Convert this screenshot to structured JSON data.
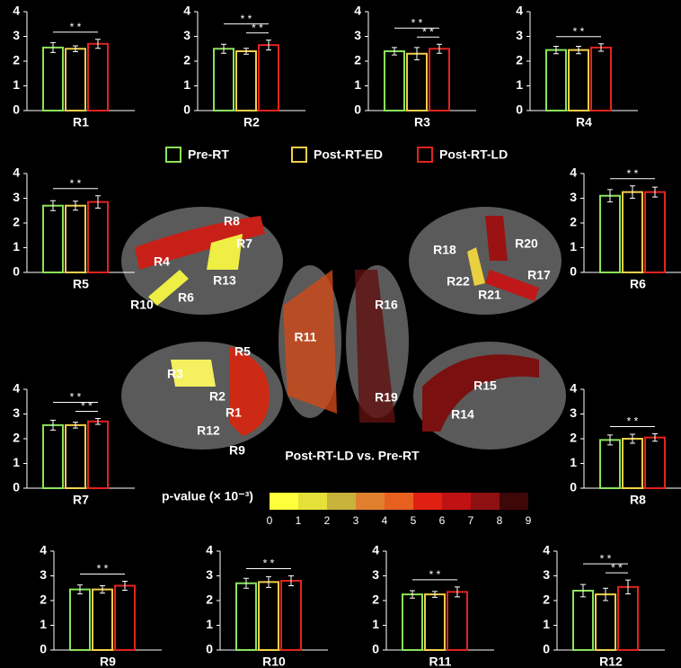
{
  "legend": [
    {
      "name": "Pre-RT",
      "color": "#8be35c"
    },
    {
      "name": "Post-RT-ED",
      "color": "#f2cf4a"
    },
    {
      "name": "Post-RT-LD",
      "color": "#e2231f"
    }
  ],
  "contrast_label": "Post-RT-LD vs. Pre-RT",
  "colorbar": {
    "title": "p-value (× 10⁻³)",
    "ticks": [
      0,
      1,
      2,
      3,
      4,
      5,
      6,
      7,
      8,
      9
    ],
    "colors": [
      "#ffff3c",
      "#e6e03a",
      "#c9b23a",
      "#e0802e",
      "#e86020",
      "#e02012",
      "#c01212",
      "#8e1010",
      "#3e0808"
    ]
  },
  "brain_labels": [
    "R8",
    "R7",
    "R4",
    "R13",
    "R10",
    "R6",
    "R18",
    "R20",
    "R17",
    "R22",
    "R21",
    "R16",
    "R11",
    "R19",
    "R5",
    "R3",
    "R2",
    "R1",
    "R12",
    "R9",
    "R15",
    "R14"
  ],
  "chart_data": [
    {
      "type": "bar",
      "title": "R1",
      "values": [
        2.55,
        2.5,
        2.7
      ],
      "errors": [
        0.2,
        0.12,
        0.18
      ],
      "ylim": [
        0,
        4
      ],
      "yticks": [
        0,
        1,
        2,
        3,
        4
      ],
      "significance": [
        {
          "from": 0,
          "to": 2,
          "label": "* *"
        }
      ]
    },
    {
      "type": "bar",
      "title": "R2",
      "values": [
        2.5,
        2.4,
        2.65
      ],
      "errors": [
        0.18,
        0.12,
        0.2
      ],
      "ylim": [
        0,
        4
      ],
      "yticks": [
        0,
        1,
        2,
        3,
        4
      ],
      "significance": [
        {
          "from": 0,
          "to": 2,
          "label": "* *"
        },
        {
          "from": 1,
          "to": 2,
          "label": "* *"
        }
      ]
    },
    {
      "type": "bar",
      "title": "R3",
      "values": [
        2.4,
        2.3,
        2.5
      ],
      "errors": [
        0.15,
        0.25,
        0.18
      ],
      "ylim": [
        0,
        4
      ],
      "yticks": [
        0,
        1,
        2,
        3,
        4
      ],
      "significance": [
        {
          "from": 0,
          "to": 2,
          "label": "* *"
        },
        {
          "from": 1,
          "to": 2,
          "label": "* *"
        }
      ]
    },
    {
      "type": "bar",
      "title": "R4",
      "values": [
        2.45,
        2.45,
        2.55
      ],
      "errors": [
        0.15,
        0.15,
        0.15
      ],
      "ylim": [
        0,
        4
      ],
      "yticks": [
        0,
        1,
        2,
        3,
        4
      ],
      "significance": [
        {
          "from": 0,
          "to": 2,
          "label": "* *"
        }
      ]
    },
    {
      "type": "bar",
      "title": "R5",
      "values": [
        2.7,
        2.7,
        2.85
      ],
      "errors": [
        0.2,
        0.18,
        0.25
      ],
      "ylim": [
        0,
        4
      ],
      "yticks": [
        0,
        1,
        2,
        3,
        4
      ],
      "significance": [
        {
          "from": 0,
          "to": 2,
          "label": "* *"
        }
      ]
    },
    {
      "type": "bar",
      "title": "R6",
      "values": [
        3.1,
        3.25,
        3.25
      ],
      "errors": [
        0.25,
        0.25,
        0.2
      ],
      "ylim": [
        0,
        4
      ],
      "yticks": [
        0,
        1,
        2,
        3,
        4
      ],
      "significance": [
        {
          "from": 0,
          "to": 2,
          "label": "* *"
        }
      ]
    },
    {
      "type": "bar",
      "title": "R7",
      "values": [
        2.55,
        2.55,
        2.7
      ],
      "errors": [
        0.2,
        0.12,
        0.12
      ],
      "ylim": [
        0,
        4
      ],
      "yticks": [
        0,
        1,
        2,
        3,
        4
      ],
      "significance": [
        {
          "from": 0,
          "to": 2,
          "label": "* *"
        },
        {
          "from": 1,
          "to": 2,
          "label": "* *"
        }
      ]
    },
    {
      "type": "bar",
      "title": "R8",
      "values": [
        1.95,
        2.0,
        2.05
      ],
      "errors": [
        0.2,
        0.18,
        0.15
      ],
      "ylim": [
        0,
        4
      ],
      "yticks": [
        0,
        1,
        2,
        3,
        4
      ],
      "significance": [
        {
          "from": 0,
          "to": 2,
          "label": "* *"
        }
      ]
    },
    {
      "type": "bar",
      "title": "R9",
      "values": [
        2.45,
        2.45,
        2.6
      ],
      "errors": [
        0.18,
        0.15,
        0.18
      ],
      "ylim": [
        0,
        4
      ],
      "yticks": [
        0,
        1,
        2,
        3,
        4
      ],
      "significance": [
        {
          "from": 0,
          "to": 2,
          "label": "* *"
        }
      ]
    },
    {
      "type": "bar",
      "title": "R10",
      "values": [
        2.7,
        2.75,
        2.8
      ],
      "errors": [
        0.2,
        0.22,
        0.2
      ],
      "ylim": [
        0,
        4
      ],
      "yticks": [
        0,
        1,
        2,
        3,
        4
      ],
      "significance": [
        {
          "from": 0,
          "to": 2,
          "label": "* *"
        }
      ]
    },
    {
      "type": "bar",
      "title": "R11",
      "values": [
        2.25,
        2.25,
        2.35
      ],
      "errors": [
        0.15,
        0.12,
        0.2
      ],
      "ylim": [
        0,
        4
      ],
      "yticks": [
        0,
        1,
        2,
        3,
        4
      ],
      "significance": [
        {
          "from": 0,
          "to": 2,
          "label": "* *"
        }
      ]
    },
    {
      "type": "bar",
      "title": "R12",
      "values": [
        2.4,
        2.25,
        2.55
      ],
      "errors": [
        0.25,
        0.25,
        0.28
      ],
      "ylim": [
        0,
        4
      ],
      "yticks": [
        0,
        1,
        2,
        3,
        4
      ],
      "significance": [
        {
          "from": 0,
          "to": 2,
          "label": "* *"
        },
        {
          "from": 1,
          "to": 2,
          "label": "* *"
        }
      ]
    }
  ]
}
